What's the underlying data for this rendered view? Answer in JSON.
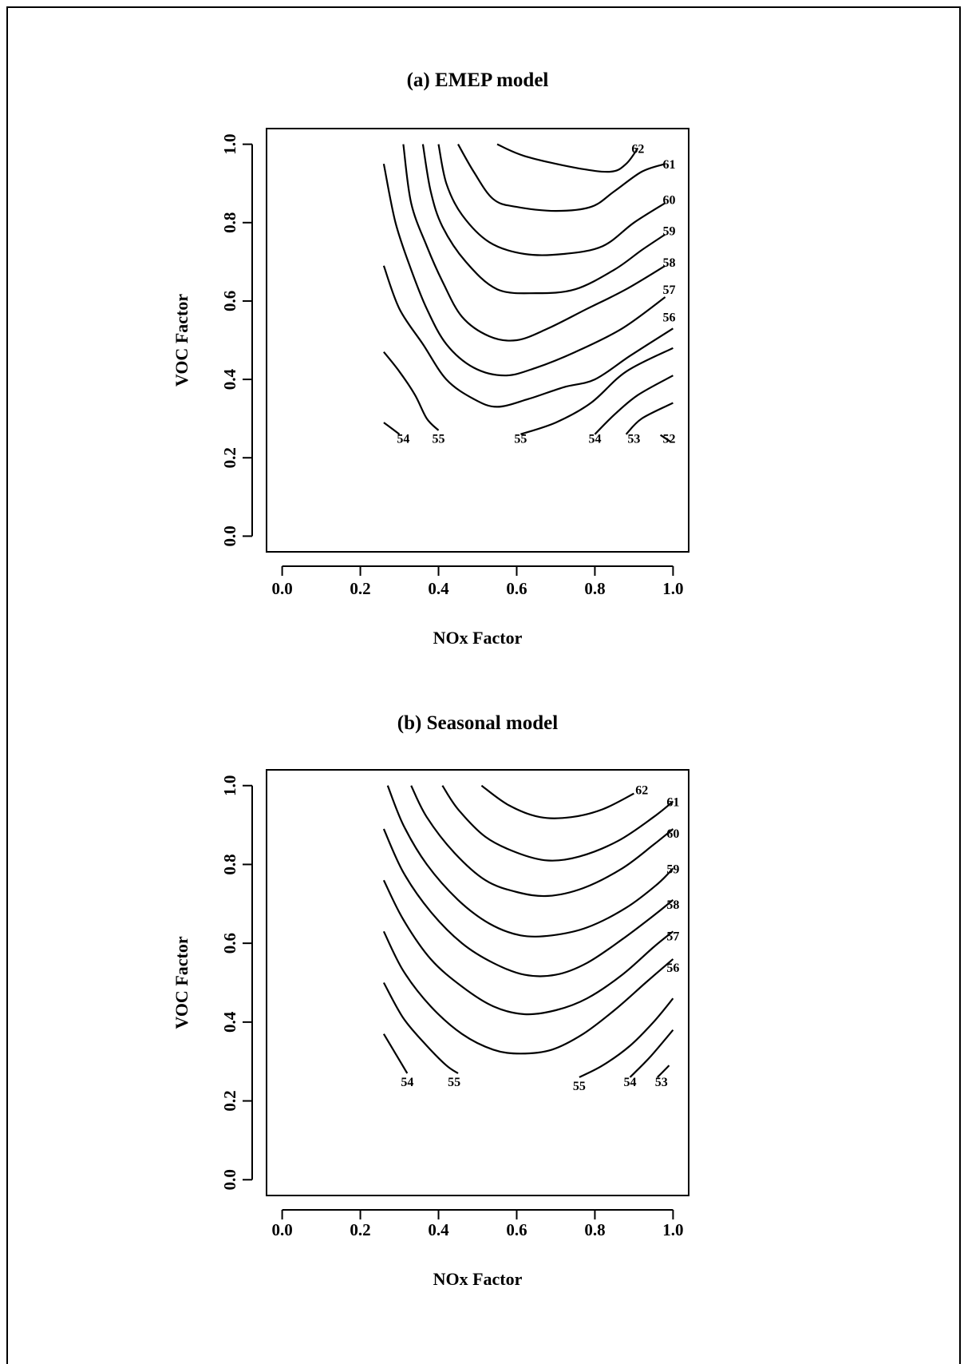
{
  "chart_data": [
    {
      "type": "contour",
      "title": "(a) EMEP model",
      "xlabel": "NOx Factor",
      "ylabel": "VOC Factor",
      "xlim": [
        -0.04,
        1.04
      ],
      "ylim": [
        -0.04,
        1.04
      ],
      "xticks": [
        "0.0",
        "0.2",
        "0.4",
        "0.6",
        "0.8",
        "1.0"
      ],
      "yticks": [
        "0.0",
        "0.2",
        "0.4",
        "0.6",
        "0.8",
        "1.0"
      ],
      "xtick_values": [
        0.0,
        0.2,
        0.4,
        0.6,
        0.8,
        1.0
      ],
      "ytick_values": [
        0.0,
        0.2,
        0.4,
        0.6,
        0.8,
        1.0
      ],
      "contours": [
        {
          "level": "62",
          "points": [
            [
              0.55,
              1.0
            ],
            [
              0.62,
              0.97
            ],
            [
              0.75,
              0.94
            ],
            [
              0.84,
              0.93
            ],
            [
              0.88,
              0.95
            ],
            [
              0.91,
              0.99
            ]
          ]
        },
        {
          "level": "61",
          "points": [
            [
              0.45,
              1.0
            ],
            [
              0.49,
              0.93
            ],
            [
              0.54,
              0.86
            ],
            [
              0.6,
              0.84
            ],
            [
              0.7,
              0.83
            ],
            [
              0.79,
              0.84
            ],
            [
              0.85,
              0.88
            ],
            [
              0.92,
              0.93
            ],
            [
              0.98,
              0.95
            ]
          ]
        },
        {
          "level": "60",
          "points": [
            [
              0.4,
              1.0
            ],
            [
              0.42,
              0.9
            ],
            [
              0.46,
              0.82
            ],
            [
              0.53,
              0.75
            ],
            [
              0.62,
              0.72
            ],
            [
              0.72,
              0.72
            ],
            [
              0.82,
              0.74
            ],
            [
              0.9,
              0.8
            ],
            [
              0.98,
              0.85
            ]
          ]
        },
        {
          "level": "59",
          "points": [
            [
              0.36,
              1.0
            ],
            [
              0.38,
              0.88
            ],
            [
              0.41,
              0.79
            ],
            [
              0.47,
              0.7
            ],
            [
              0.55,
              0.63
            ],
            [
              0.65,
              0.62
            ],
            [
              0.75,
              0.63
            ],
            [
              0.85,
              0.68
            ],
            [
              0.92,
              0.73
            ],
            [
              0.98,
              0.77
            ]
          ]
        },
        {
          "level": "58",
          "points": [
            [
              0.31,
              1.0
            ],
            [
              0.33,
              0.85
            ],
            [
              0.37,
              0.74
            ],
            [
              0.41,
              0.65
            ],
            [
              0.46,
              0.56
            ],
            [
              0.53,
              0.51
            ],
            [
              0.6,
              0.5
            ],
            [
              0.68,
              0.53
            ],
            [
              0.78,
              0.58
            ],
            [
              0.88,
              0.63
            ],
            [
              0.98,
              0.69
            ]
          ]
        },
        {
          "level": "57",
          "points": [
            [
              0.26,
              0.95
            ],
            [
              0.29,
              0.8
            ],
            [
              0.33,
              0.68
            ],
            [
              0.37,
              0.58
            ],
            [
              0.42,
              0.49
            ],
            [
              0.49,
              0.43
            ],
            [
              0.57,
              0.41
            ],
            [
              0.65,
              0.43
            ],
            [
              0.75,
              0.47
            ],
            [
              0.87,
              0.53
            ],
            [
              0.98,
              0.61
            ]
          ]
        },
        {
          "level": "56",
          "points": [
            [
              0.26,
              0.69
            ],
            [
              0.3,
              0.58
            ],
            [
              0.36,
              0.49
            ],
            [
              0.42,
              0.4
            ],
            [
              0.49,
              0.35
            ],
            [
              0.55,
              0.33
            ],
            [
              0.63,
              0.35
            ],
            [
              0.72,
              0.38
            ],
            [
              0.8,
              0.4
            ],
            [
              0.89,
              0.46
            ],
            [
              1.0,
              0.53
            ]
          ]
        },
        {
          "level": "55",
          "points": [
            [
              0.61,
              0.26
            ],
            [
              0.7,
              0.29
            ],
            [
              0.79,
              0.34
            ],
            [
              0.88,
              0.42
            ],
            [
              1.0,
              0.48
            ]
          ]
        },
        {
          "level": "55",
          "points": [
            [
              0.26,
              0.47
            ],
            [
              0.3,
              0.42
            ],
            [
              0.34,
              0.36
            ],
            [
              0.37,
              0.3
            ],
            [
              0.4,
              0.27
            ]
          ]
        },
        {
          "level": "54",
          "points": [
            [
              0.26,
              0.29
            ],
            [
              0.3,
              0.26
            ]
          ]
        },
        {
          "level": "54",
          "points": [
            [
              0.8,
              0.26
            ],
            [
              0.85,
              0.31
            ],
            [
              0.91,
              0.36
            ],
            [
              1.0,
              0.41
            ]
          ]
        },
        {
          "level": "53",
          "points": [
            [
              0.88,
              0.26
            ],
            [
              0.92,
              0.3
            ],
            [
              1.0,
              0.34
            ]
          ]
        },
        {
          "level": "52",
          "points": [
            [
              0.98,
              0.25
            ]
          ]
        }
      ],
      "contour_labels": [
        {
          "text": "62",
          "x": 0.91,
          "y": 0.99
        },
        {
          "text": "61",
          "x": 0.99,
          "y": 0.95
        },
        {
          "text": "60",
          "x": 0.99,
          "y": 0.86
        },
        {
          "text": "59",
          "x": 0.99,
          "y": 0.78
        },
        {
          "text": "58",
          "x": 0.99,
          "y": 0.7
        },
        {
          "text": "57",
          "x": 0.99,
          "y": 0.63
        },
        {
          "text": "56",
          "x": 0.99,
          "y": 0.56
        },
        {
          "text": "55",
          "x": 0.61,
          "y": 0.25
        },
        {
          "text": "55",
          "x": 0.4,
          "y": 0.25
        },
        {
          "text": "54",
          "x": 0.31,
          "y": 0.25
        },
        {
          "text": "54",
          "x": 0.8,
          "y": 0.25
        },
        {
          "text": "53",
          "x": 0.9,
          "y": 0.25
        },
        {
          "text": "52",
          "x": 0.99,
          "y": 0.25
        }
      ]
    },
    {
      "type": "contour",
      "title": "(b) Seasonal model",
      "xlabel": "NOx Factor",
      "ylabel": "VOC Factor",
      "xlim": [
        -0.04,
        1.04
      ],
      "ylim": [
        -0.04,
        1.04
      ],
      "xticks": [
        "0.0",
        "0.2",
        "0.4",
        "0.6",
        "0.8",
        "1.0"
      ],
      "yticks": [
        "0.0",
        "0.2",
        "0.4",
        "0.6",
        "0.8",
        "1.0"
      ],
      "xtick_values": [
        0.0,
        0.2,
        0.4,
        0.6,
        0.8,
        1.0
      ],
      "ytick_values": [
        0.0,
        0.2,
        0.4,
        0.6,
        0.8,
        1.0
      ],
      "contours": [
        {
          "level": "62",
          "points": [
            [
              0.51,
              1.0
            ],
            [
              0.58,
              0.95
            ],
            [
              0.66,
              0.92
            ],
            [
              0.74,
              0.92
            ],
            [
              0.82,
              0.94
            ],
            [
              0.9,
              0.98
            ]
          ]
        },
        {
          "level": "61",
          "points": [
            [
              0.41,
              1.0
            ],
            [
              0.45,
              0.94
            ],
            [
              0.52,
              0.87
            ],
            [
              0.6,
              0.83
            ],
            [
              0.68,
              0.81
            ],
            [
              0.76,
              0.82
            ],
            [
              0.86,
              0.86
            ],
            [
              0.95,
              0.92
            ],
            [
              1.0,
              0.96
            ]
          ]
        },
        {
          "level": "60",
          "points": [
            [
              0.33,
              1.0
            ],
            [
              0.37,
              0.92
            ],
            [
              0.44,
              0.83
            ],
            [
              0.52,
              0.76
            ],
            [
              0.6,
              0.73
            ],
            [
              0.68,
              0.72
            ],
            [
              0.77,
              0.74
            ],
            [
              0.87,
              0.79
            ],
            [
              0.95,
              0.85
            ],
            [
              1.0,
              0.89
            ]
          ]
        },
        {
          "level": "59",
          "points": [
            [
              0.27,
              1.0
            ],
            [
              0.31,
              0.9
            ],
            [
              0.37,
              0.8
            ],
            [
              0.45,
              0.71
            ],
            [
              0.53,
              0.65
            ],
            [
              0.61,
              0.62
            ],
            [
              0.69,
              0.62
            ],
            [
              0.78,
              0.64
            ],
            [
              0.88,
              0.69
            ],
            [
              0.96,
              0.75
            ],
            [
              1.0,
              0.79
            ]
          ]
        },
        {
          "level": "58",
          "points": [
            [
              0.26,
              0.89
            ],
            [
              0.31,
              0.78
            ],
            [
              0.38,
              0.68
            ],
            [
              0.46,
              0.6
            ],
            [
              0.54,
              0.55
            ],
            [
              0.62,
              0.52
            ],
            [
              0.7,
              0.52
            ],
            [
              0.78,
              0.55
            ],
            [
              0.87,
              0.61
            ],
            [
              0.95,
              0.67
            ],
            [
              1.0,
              0.71
            ]
          ]
        },
        {
          "level": "57",
          "points": [
            [
              0.26,
              0.76
            ],
            [
              0.31,
              0.66
            ],
            [
              0.38,
              0.56
            ],
            [
              0.46,
              0.49
            ],
            [
              0.54,
              0.44
            ],
            [
              0.62,
              0.42
            ],
            [
              0.7,
              0.43
            ],
            [
              0.78,
              0.46
            ],
            [
              0.87,
              0.52
            ],
            [
              0.95,
              0.59
            ],
            [
              1.0,
              0.63
            ]
          ]
        },
        {
          "level": "56",
          "points": [
            [
              0.26,
              0.63
            ],
            [
              0.31,
              0.53
            ],
            [
              0.38,
              0.44
            ],
            [
              0.46,
              0.37
            ],
            [
              0.54,
              0.33
            ],
            [
              0.61,
              0.32
            ],
            [
              0.69,
              0.33
            ],
            [
              0.77,
              0.37
            ],
            [
              0.85,
              0.43
            ],
            [
              0.93,
              0.5
            ],
            [
              1.0,
              0.56
            ]
          ]
        },
        {
          "level": "55",
          "points": [
            [
              0.26,
              0.5
            ],
            [
              0.31,
              0.41
            ],
            [
              0.37,
              0.34
            ],
            [
              0.42,
              0.29
            ],
            [
              0.45,
              0.27
            ]
          ]
        },
        {
          "level": "55",
          "points": [
            [
              0.76,
              0.26
            ],
            [
              0.82,
              0.29
            ],
            [
              0.89,
              0.34
            ],
            [
              0.95,
              0.4
            ],
            [
              1.0,
              0.46
            ]
          ]
        },
        {
          "level": "54",
          "points": [
            [
              0.26,
              0.37
            ],
            [
              0.29,
              0.32
            ],
            [
              0.32,
              0.27
            ]
          ]
        },
        {
          "level": "54",
          "points": [
            [
              0.89,
              0.26
            ],
            [
              0.94,
              0.31
            ],
            [
              1.0,
              0.38
            ]
          ]
        },
        {
          "level": "53",
          "points": [
            [
              0.96,
              0.26
            ],
            [
              0.99,
              0.29
            ]
          ]
        }
      ],
      "contour_labels": [
        {
          "text": "62",
          "x": 0.92,
          "y": 0.99
        },
        {
          "text": "61",
          "x": 1.0,
          "y": 0.96
        },
        {
          "text": "60",
          "x": 1.0,
          "y": 0.88
        },
        {
          "text": "59",
          "x": 1.0,
          "y": 0.79
        },
        {
          "text": "58",
          "x": 1.0,
          "y": 0.7
        },
        {
          "text": "57",
          "x": 1.0,
          "y": 0.62
        },
        {
          "text": "56",
          "x": 1.0,
          "y": 0.54
        },
        {
          "text": "54",
          "x": 0.32,
          "y": 0.25
        },
        {
          "text": "55",
          "x": 0.44,
          "y": 0.25
        },
        {
          "text": "55",
          "x": 0.76,
          "y": 0.24
        },
        {
          "text": "54",
          "x": 0.89,
          "y": 0.25
        },
        {
          "text": "53",
          "x": 0.97,
          "y": 0.25
        }
      ]
    }
  ]
}
